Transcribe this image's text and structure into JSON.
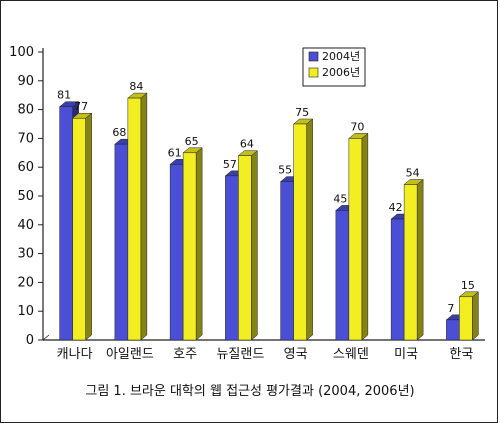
{
  "caption": "그림 1. 브라운 대학의 웹 접근성 평가결과 (2004, 2006년)",
  "colors": {
    "series_2004": "#4a4fd6",
    "series_2006": "#f2ee22",
    "axis": "#222222",
    "frame": "#222222"
  },
  "chart_data": {
    "type": "bar",
    "categories": [
      "캐나다",
      "아일랜드",
      "호주",
      "뉴질랜드",
      "영국",
      "스웨덴",
      "미국",
      "한국"
    ],
    "series": [
      {
        "name": "2004년",
        "values": [
          81,
          68,
          61,
          57,
          55,
          45,
          42,
          7
        ]
      },
      {
        "name": "2006년",
        "values": [
          77,
          84,
          65,
          64,
          75,
          70,
          54,
          15
        ]
      }
    ],
    "ylim": [
      0,
      100
    ],
    "yticks": [
      0,
      10,
      20,
      30,
      40,
      50,
      60,
      70,
      80,
      90,
      100
    ],
    "grid": false,
    "legend": "top-right",
    "style": "3d-bar"
  }
}
